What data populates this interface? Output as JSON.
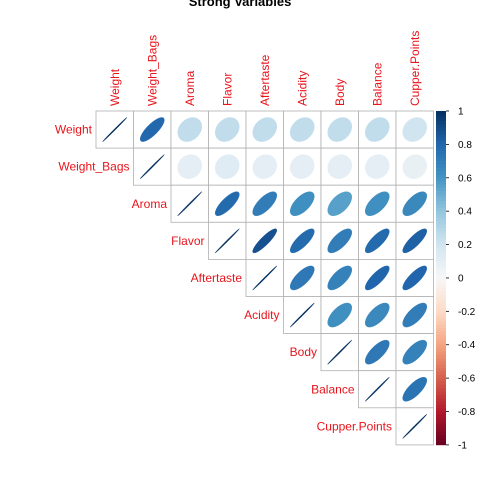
{
  "chart_data": {
    "type": "heatmap",
    "title": "Strong Variables",
    "variables": [
      "Weight",
      "Weight_Bags",
      "Aroma",
      "Flavor",
      "Aftertaste",
      "Acidity",
      "Body",
      "Balance",
      "Cupper.Points"
    ],
    "matrix": [
      [
        1.0,
        0.79,
        0.25,
        0.25,
        0.25,
        0.25,
        0.25,
        0.25,
        0.2
      ],
      [
        null,
        1.0,
        0.1,
        0.12,
        0.1,
        0.1,
        0.1,
        0.1,
        0.08
      ],
      [
        null,
        null,
        1.0,
        0.78,
        0.7,
        0.62,
        0.55,
        0.62,
        0.65
      ],
      [
        null,
        null,
        null,
        1.0,
        0.88,
        0.78,
        0.7,
        0.78,
        0.82
      ],
      [
        null,
        null,
        null,
        null,
        1.0,
        0.72,
        0.68,
        0.8,
        0.8
      ],
      [
        null,
        null,
        null,
        null,
        null,
        1.0,
        0.62,
        0.65,
        0.7
      ],
      [
        null,
        null,
        null,
        null,
        null,
        null,
        1.0,
        0.72,
        0.68
      ],
      [
        null,
        null,
        null,
        null,
        null,
        null,
        null,
        1.0,
        0.74
      ],
      [
        null,
        null,
        null,
        null,
        null,
        null,
        null,
        null,
        1.0
      ]
    ],
    "shape": "ellipse",
    "triangle": "upper",
    "colorbar": {
      "range": [
        -1,
        1
      ],
      "ticks": [
        "1",
        "0.8",
        "0.6",
        "0.4",
        "0.2",
        "0",
        "-0.2",
        "-0.4",
        "-0.6",
        "-0.8",
        "-1"
      ],
      "low_color": "#67001f",
      "mid_color": "#f7f7f7",
      "high_color": "#053061"
    },
    "label_color": "#e8141b"
  }
}
